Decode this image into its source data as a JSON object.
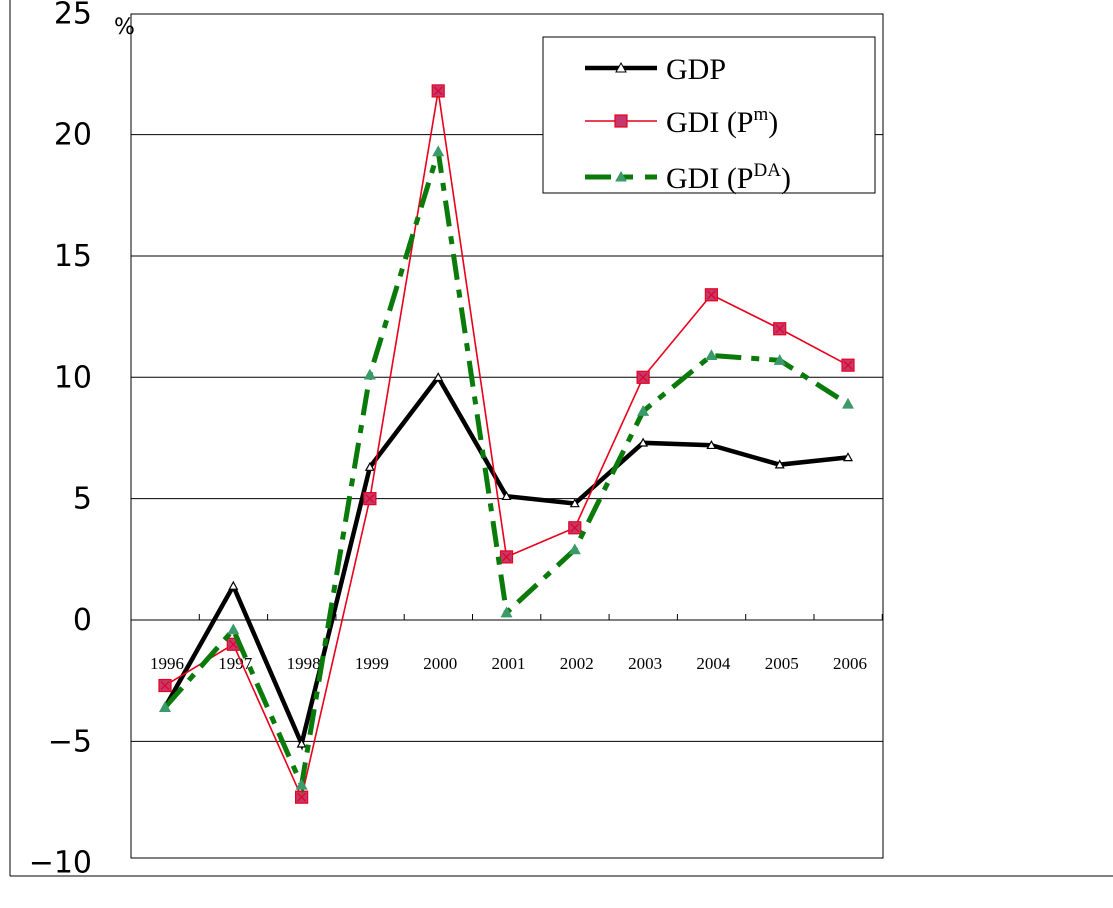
{
  "chart_data": {
    "type": "line",
    "unit_label": "%",
    "categories": [
      "1996",
      "1997",
      "1998",
      "1999",
      "2000",
      "2001",
      "2002",
      "2003",
      "2004",
      "2005",
      "2006"
    ],
    "ylim": [
      -10,
      25
    ],
    "yticks": [
      -10,
      -5,
      0,
      5,
      10,
      15,
      20,
      25
    ],
    "yticks_display": [
      "−10",
      "−5",
      "0",
      "5",
      "10",
      "15",
      "20",
      "25"
    ],
    "grid": true,
    "legend_position": "top-right",
    "series": [
      {
        "name": "GDP",
        "color": "#000000",
        "marker": "triangle",
        "values": [
          -3.6,
          1.4,
          -5.1,
          6.3,
          10.0,
          5.1,
          4.8,
          7.3,
          7.2,
          6.4,
          6.7
        ]
      },
      {
        "name": "GDI (Pm)",
        "name_base": "GDI (P",
        "name_sup": "m",
        "name_tail": ")",
        "color": "#e8001c",
        "marker_fill": "#c2386f",
        "marker": "square",
        "values": [
          -2.7,
          -1.0,
          -7.3,
          5.0,
          21.8,
          2.6,
          3.8,
          10.0,
          13.4,
          12.0,
          10.5
        ]
      },
      {
        "name": "GDI (PDA)",
        "name_base": "GDI  (P",
        "name_sup": "DA",
        "name_tail": ")",
        "color": "#0a7a0a",
        "marker_fill": "#3a9a6a",
        "marker": "triangle",
        "values": [
          -3.6,
          -0.4,
          -6.8,
          10.1,
          19.3,
          0.3,
          2.9,
          8.6,
          10.9,
          10.7,
          8.9
        ]
      }
    ]
  }
}
